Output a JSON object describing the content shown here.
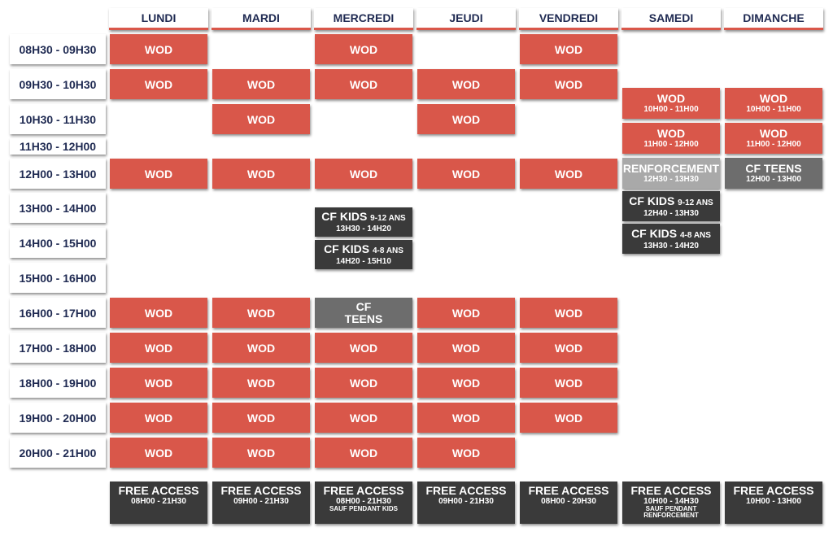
{
  "days": [
    "LUNDI",
    "MARDI",
    "MERCREDI",
    "JEUDI",
    "VENDREDI",
    "SAMEDI",
    "DIMANCHE"
  ],
  "times": [
    "08H30 - 09H30",
    "09H30 - 10H30",
    "10H30 - 11H30",
    "11H30 - 12H00",
    "12H00 - 13H00",
    "13H00 - 14H00",
    "14H00 - 15H00",
    "15H00 - 16H00",
    "16H00 - 17H00",
    "17H00 - 18H00",
    "18H00 - 19H00",
    "19H00 - 20H00",
    "20H00 - 21H00"
  ],
  "labels": {
    "wod": "WOD",
    "cf_kids": "CF KIDS",
    "ages_9_12": "9-12 ANS",
    "ages_4_8": "4-8 ANS",
    "cf": "CF",
    "teens": "TEENS",
    "cf_teens": "CF TEENS",
    "renforcement": "RENFORCEMENT",
    "free_access": "FREE ACCESS"
  },
  "weekend": {
    "sam_wod1": "10H00 - 11H00",
    "sam_wod2": "11H00 - 12H00",
    "sam_renf": "12H30 - 13H30",
    "sam_kids912": "12H40 - 13H30",
    "sam_kids48": "13H30 - 14H20",
    "dim_wod1": "10H00 - 11H00",
    "dim_wod2": "11H00 - 12H00",
    "dim_teens": "12H00 - 13H00"
  },
  "mercredi": {
    "kids912_time": "13H30 - 14H20",
    "kids48_time": "14H20 - 15H10"
  },
  "free_access": [
    {
      "time": "08H00 - 21H30",
      "note": ""
    },
    {
      "time": "09H00 - 21H30",
      "note": ""
    },
    {
      "time": "08H00 - 21H30",
      "note": "SAUF PENDANT KIDS"
    },
    {
      "time": "09H00 - 21H30",
      "note": ""
    },
    {
      "time": "08H00 - 20H30",
      "note": ""
    },
    {
      "time": "10H00 - 14H30",
      "note": "SAUF PENDANT RENFORCEMENT"
    },
    {
      "time": "10H00 - 13H00",
      "note": ""
    }
  ],
  "colors": {
    "wod": "#d9574a",
    "dark": "#3a3a3a",
    "gray": "#6d6d6d",
    "lightgray": "#a9a9a9",
    "text": "#1f2a52"
  }
}
